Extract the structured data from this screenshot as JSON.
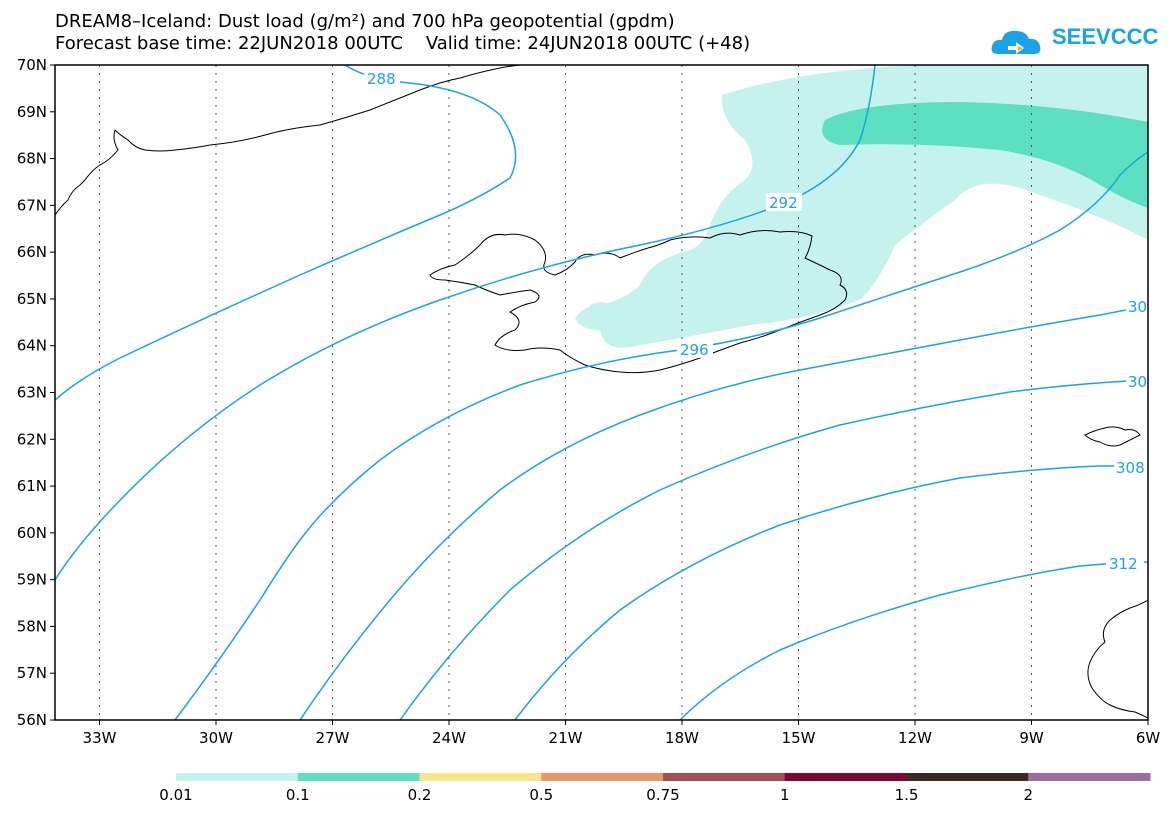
{
  "header": {
    "title_line1": "DREAM8–Iceland: Dust load (g/m²) and 700 hPa geopotential (gpdm)",
    "title_line2": "Forecast base time: 22JUN2018 00UTC    Valid time: 24JUN2018 00UTC (+48)"
  },
  "logo": {
    "text": "SEEVCCC",
    "icon": "cloud-icon",
    "color": "#1aa3e8"
  },
  "map": {
    "lat_labels": [
      "70N",
      "69N",
      "68N",
      "67N",
      "66N",
      "65N",
      "64N",
      "63N",
      "62N",
      "61N",
      "60N",
      "59N",
      "58N",
      "57N",
      "56N"
    ],
    "lon_labels": [
      "33W",
      "30W",
      "27W",
      "24W",
      "21W",
      "18W",
      "15W",
      "12W",
      "9W",
      "6W"
    ],
    "contour_labels": [
      "288",
      "292",
      "296",
      "30",
      "30",
      "308",
      "312"
    ],
    "contour_color": "#1aa3e8",
    "coast_color": "#000000"
  },
  "colorbar": {
    "labels": [
      "0.01",
      "0.1",
      "0.2",
      "0.5",
      "0.75",
      "1",
      "1.5",
      "2"
    ],
    "colors": [
      "#c5f2ec",
      "#5ce0c0",
      "#f7e68a",
      "#e8956a",
      "#a35050",
      "#7a0a30",
      "#3a2a20",
      "#9a6fa0"
    ]
  }
}
